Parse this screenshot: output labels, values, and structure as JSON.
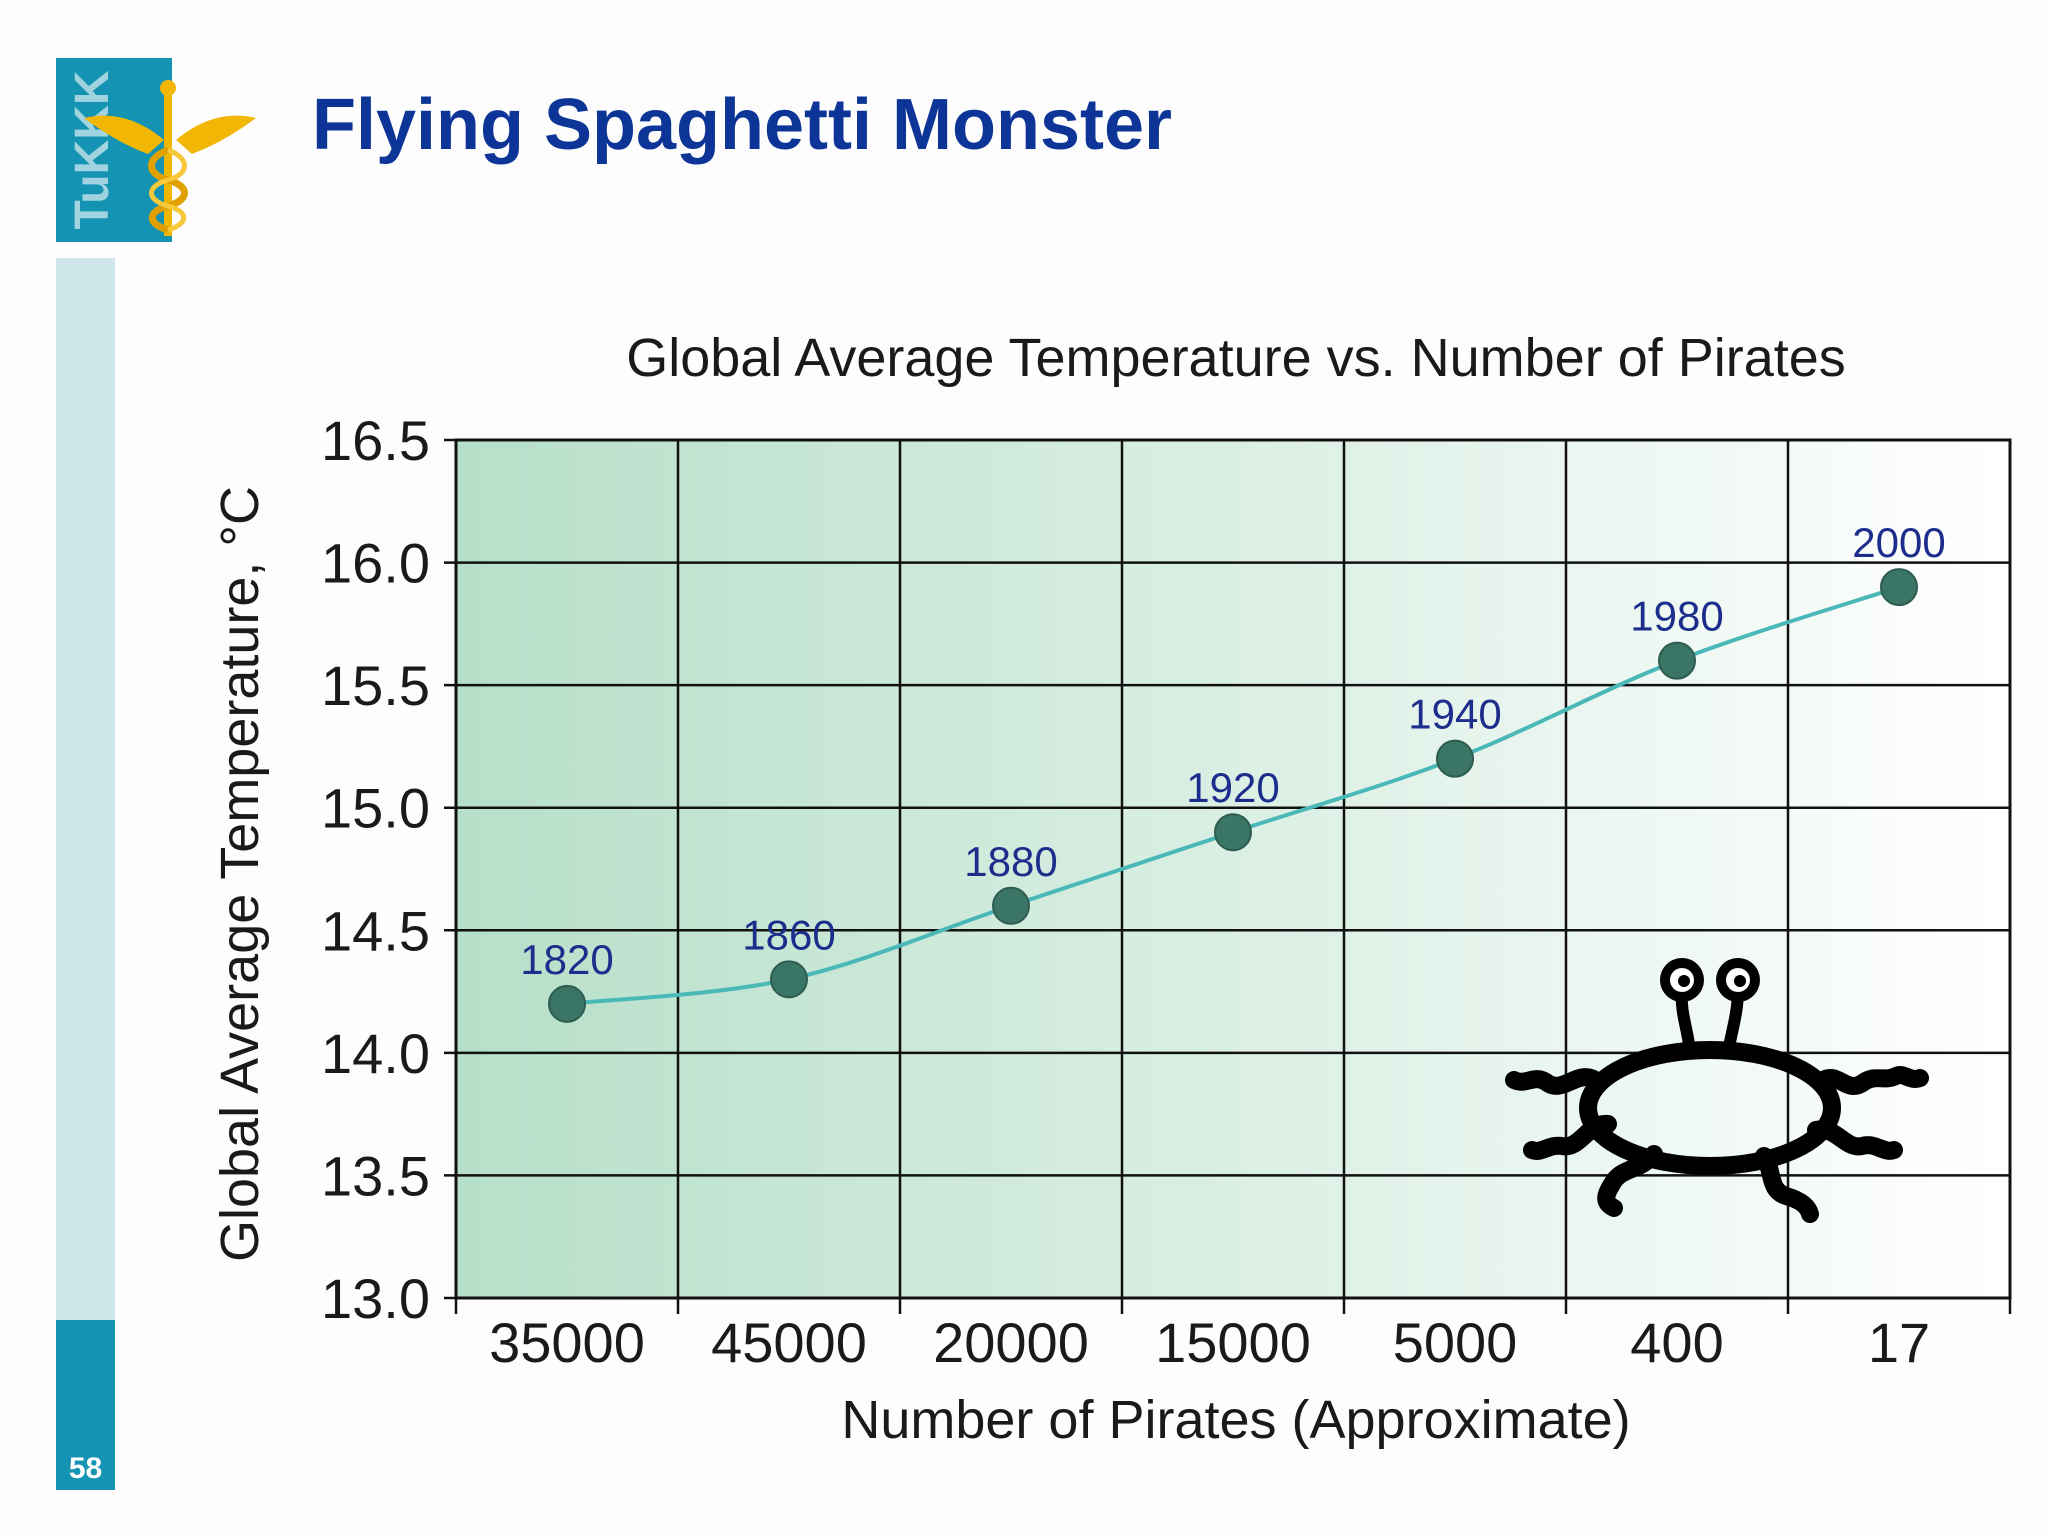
{
  "slide": {
    "title": "Flying Spaghetti Monster",
    "page_number": "58",
    "logo_text": "TuKKK",
    "colors": {
      "title": "#0d3597",
      "sidebar_light": "#cfe6ea",
      "sidebar_dark": "#1593b2",
      "logo_gold": "#f2b705"
    }
  },
  "chart_data": {
    "type": "line",
    "title": "Global Average Temperature vs. Number of Pirates",
    "xlabel": "Number of Pirates (Approximate)",
    "ylabel": "Global Average Temperature, °C",
    "categories": [
      "35000",
      "45000",
      "20000",
      "15000",
      "5000",
      "400",
      "17"
    ],
    "yticks": [
      "16.5",
      "16.0",
      "15.5",
      "15.0",
      "14.5",
      "14.0",
      "13.5",
      "13.0"
    ],
    "ylim": [
      13.0,
      16.5
    ],
    "grid": true,
    "series": [
      {
        "values": [
          14.2,
          14.3,
          14.6,
          14.9,
          15.2,
          15.6,
          15.9
        ],
        "point_labels": [
          "1820",
          "1860",
          "1880",
          "1920",
          "1940",
          "1980",
          "2000"
        ],
        "line_color": "#4bb8b8",
        "marker_color": "#3a7565",
        "label_color": "#1c2d8c"
      }
    ],
    "background_gradient": [
      "#b6dfc9",
      "#ffffff"
    ],
    "annotation_icon": "flying-spaghetti-monster-icon"
  }
}
